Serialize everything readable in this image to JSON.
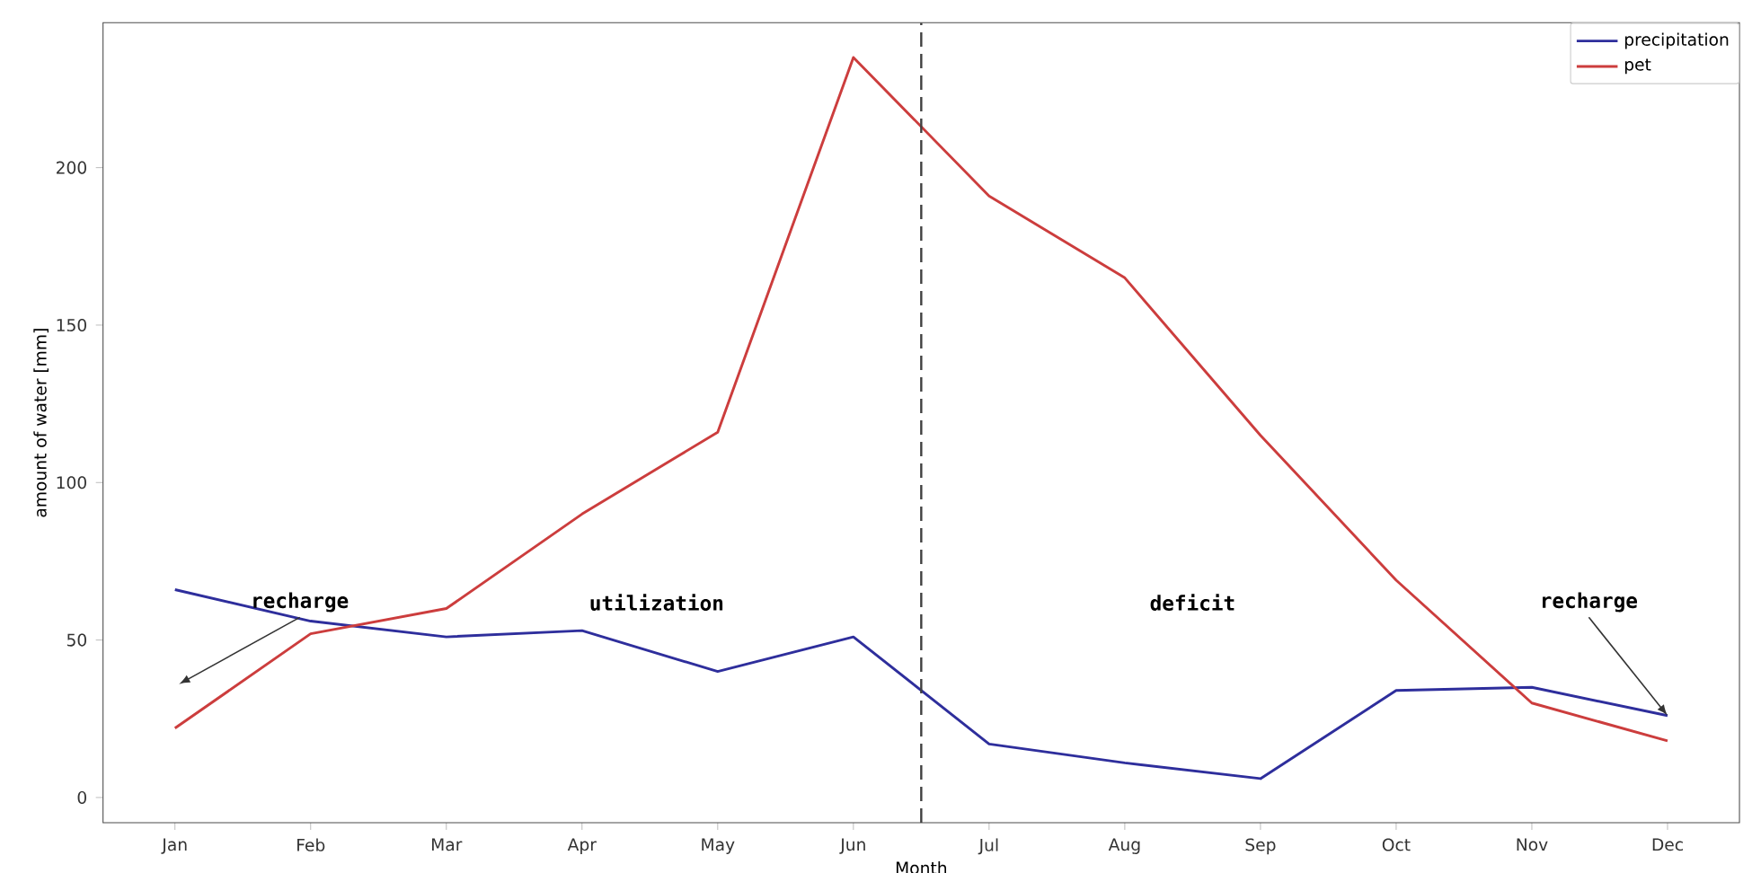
{
  "chart_data": {
    "type": "line",
    "xlabel": "Month",
    "ylabel": "amount of water [mm]",
    "categories": [
      "Jan",
      "Feb",
      "Mar",
      "Apr",
      "May",
      "Jun",
      "Jul",
      "Aug",
      "Sep",
      "Oct",
      "Nov",
      "Dec"
    ],
    "series": [
      {
        "name": "precipitation",
        "color": "#2e2e9c",
        "values": [
          66,
          56,
          51,
          53,
          40,
          51,
          17,
          11,
          6,
          34,
          35,
          26
        ]
      },
      {
        "name": "pet",
        "color": "#cc3d3d",
        "values": [
          22,
          52,
          60,
          90,
          116,
          235,
          191,
          165,
          115,
          69,
          30,
          18
        ]
      }
    ],
    "ylim": [
      -8,
      246
    ],
    "yticks": [
      0,
      50,
      100,
      150,
      200
    ],
    "annotations": [
      "recharge",
      "utilization",
      "deficit",
      {
        "text": "recharge",
        "x": "Dec",
        "y": 26
      }
    ],
    "legend": "top right",
    "grid": false,
    "marker": "none",
    "line_style": "solid"
  }
}
